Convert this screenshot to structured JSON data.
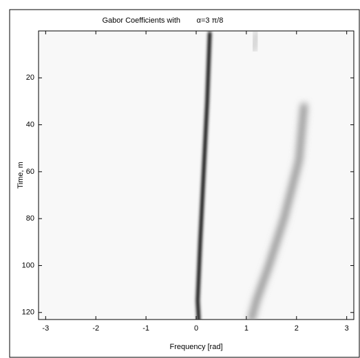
{
  "chart_data": {
    "type": "image",
    "title": "Gabor Coefficients with",
    "title_param": "α=3 π/8",
    "xlabel": "Frequency [rad]",
    "ylabel": "Time, m",
    "xlim": [
      -3.1416,
      3.1416
    ],
    "ylim": [
      0,
      123
    ],
    "xticks": [
      -3,
      -2,
      -1,
      0,
      1,
      2,
      3
    ],
    "yticks": [
      20,
      40,
      60,
      80,
      100,
      120
    ],
    "y_reversed": true,
    "ridges": [
      {
        "color": "#000000",
        "x": [
          0.27,
          0.22,
          0.15,
          0.08,
          0.03,
          0.05
        ],
        "y": [
          1,
          30,
          60,
          90,
          115,
          123
        ]
      },
      {
        "color": "#8a8a8a",
        "x": [
          2.15,
          2.05,
          1.75,
          1.45,
          1.2,
          1.1
        ],
        "y": [
          32,
          55,
          80,
          100,
          115,
          123
        ]
      },
      {
        "color": "#c8c8c8",
        "x": [
          1.2,
          1.15
        ],
        "y": [
          1,
          8
        ]
      }
    ]
  }
}
